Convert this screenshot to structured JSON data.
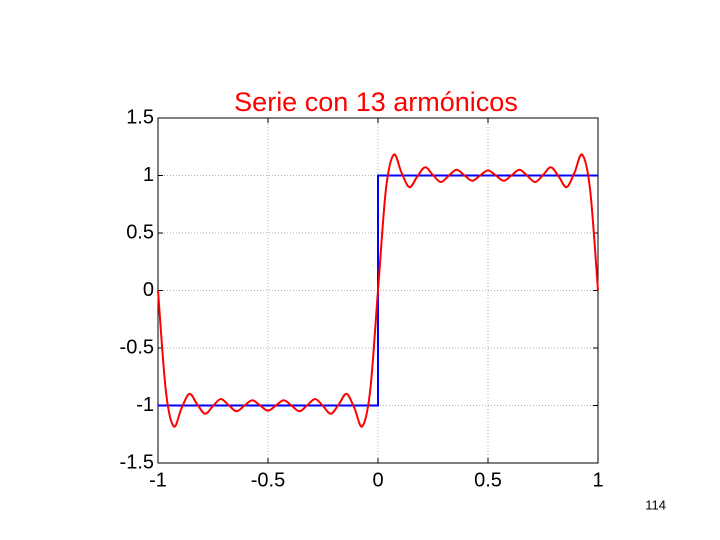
{
  "chart_data": {
    "type": "line",
    "title": "Serie con 13 armónicos",
    "series": [
      {
        "color": "#0000ff",
        "x": [
          -1,
          0,
          0,
          1
        ],
        "values": [
          -1,
          -1,
          1,
          1
        ]
      },
      {
        "color": "#ff0000",
        "x": [
          -1,
          -0.9643,
          -0.9286,
          -0.8929,
          -0.8571,
          -0.8214,
          -0.7857,
          -0.75,
          -0.7143,
          -0.6786,
          -0.6429,
          -0.6071,
          -0.5714,
          -0.5357,
          -0.5,
          -0.4643,
          -0.4286,
          -0.3929,
          -0.3571,
          -0.3214,
          -0.2857,
          -0.25,
          -0.2143,
          -0.1786,
          -0.1429,
          -0.1071,
          -0.0714,
          -0.0357,
          0,
          0.0357,
          0.0714,
          0.1071,
          0.1429,
          0.1786,
          0.2143,
          0.25,
          0.2857,
          0.3214,
          0.3571,
          0.3929,
          0.4286,
          0.4643,
          0.5,
          0.5357,
          0.5714,
          0.6071,
          0.6429,
          0.6786,
          0.7143,
          0.75,
          0.7857,
          0.8214,
          0.8571,
          0.8929,
          0.9286,
          0.9643,
          1
        ],
        "values": [
          0,
          -0.873,
          -1.181,
          -1.023,
          -0.899,
          -0.991,
          -1.072,
          -1.004,
          -0.943,
          -0.998,
          -1.05,
          -1.001,
          -0.954,
          -1.0,
          -1.045,
          -1.0,
          -0.954,
          -1.001,
          -1.05,
          -0.998,
          -0.943,
          -1.004,
          -1.072,
          -0.991,
          -0.899,
          -1.023,
          -1.181,
          -0.873,
          0,
          0.873,
          1.181,
          1.023,
          0.899,
          0.991,
          1.072,
          1.004,
          0.943,
          0.998,
          1.05,
          1.001,
          0.954,
          1.0,
          1.045,
          1.0,
          0.954,
          1.001,
          1.05,
          0.998,
          0.943,
          1.004,
          1.072,
          0.991,
          0.899,
          1.023,
          1.181,
          0.873,
          0
        ]
      }
    ],
    "xlim": [
      -1,
      1
    ],
    "xticks": [
      -1,
      -0.5,
      0,
      0.5,
      1
    ],
    "ylim": [
      -1.5,
      1.5
    ],
    "yticks": [
      -1.5,
      -1,
      -0.5,
      0,
      0.5,
      1,
      1.5
    ],
    "grid": true
  },
  "page_number": "114"
}
